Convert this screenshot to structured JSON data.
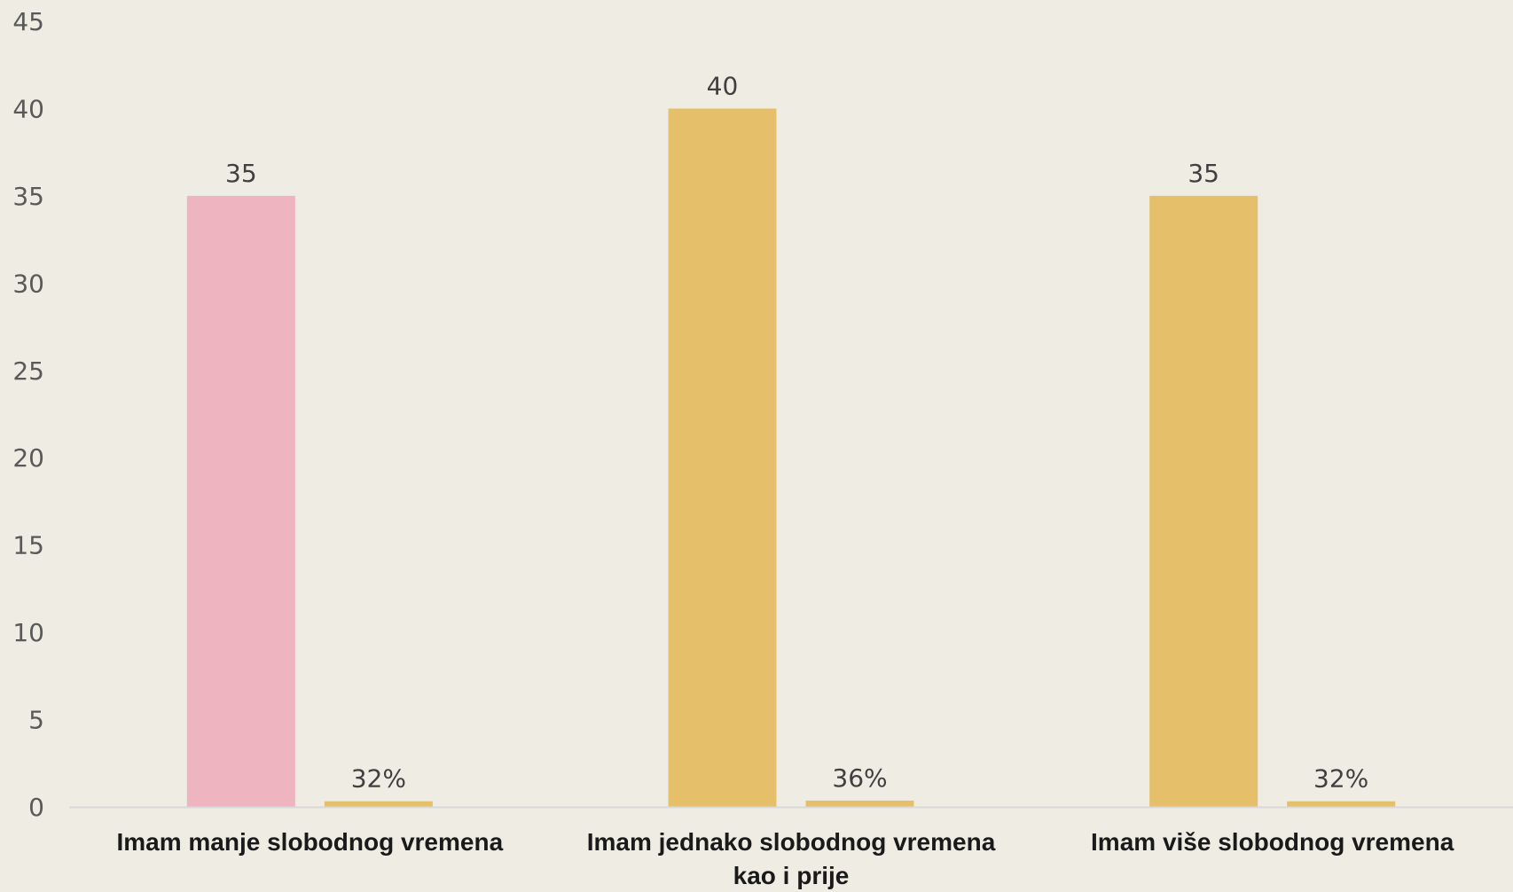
{
  "chart_data": {
    "type": "bar",
    "categories": [
      "Imam manje slobodnog vremena",
      "Imam jednako slobodnog vremena kao i prije",
      "Imam više slobodnog vremena"
    ],
    "series": [
      {
        "values": [
          35,
          40,
          35
        ],
        "labels": [
          "35",
          "40",
          "35"
        ],
        "colors": [
          "#eeb4bf",
          "#e5bf6a",
          "#e5bf6a"
        ]
      },
      {
        "values": [
          0.32,
          0.36,
          0.32
        ],
        "labels": [
          "32%",
          "36%",
          "32%"
        ],
        "colors": [
          "#e5bf6a",
          "#e5bf6a",
          "#e5bf6a"
        ]
      }
    ],
    "yticks": [
      "0",
      "5",
      "10",
      "15",
      "20",
      "25",
      "30",
      "35",
      "40",
      "45"
    ],
    "ylim": [
      0,
      45
    ],
    "title": "",
    "xlabel": "",
    "ylabel": "",
    "grid": false,
    "legend": "none",
    "colors": {
      "background": "#efece4",
      "axis": "#d9d9d9"
    }
  }
}
